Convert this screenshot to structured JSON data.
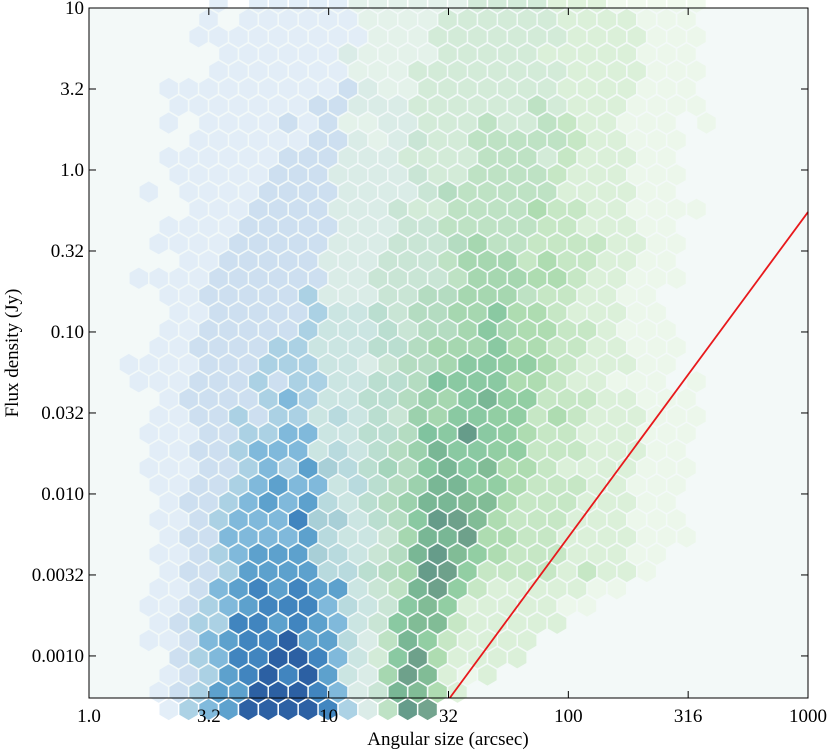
{
  "chart_data": {
    "type": "hexbin",
    "xlabel": "Angular size (arcsec)",
    "ylabel": "Flux density (Jy)",
    "x_scale": "log",
    "y_scale": "log",
    "xlim": [
      1.0,
      1000
    ],
    "ylim": [
      0.00055,
      10
    ],
    "x_ticks": [
      1.0,
      3.162,
      10,
      31.62,
      100,
      316.2,
      1000
    ],
    "x_tick_labels": [
      "1.0",
      "3.2",
      "10",
      "32",
      "100",
      "316",
      "1000"
    ],
    "y_ticks": [
      0.001,
      0.003162,
      0.01,
      0.03162,
      0.1,
      0.3162,
      1.0,
      3.162,
      10
    ],
    "y_tick_labels": [
      "0.0010",
      "0.0032",
      "0.010",
      "0.032",
      "0.10",
      "0.32",
      "1.0",
      "3.2",
      "10"
    ],
    "grid": false,
    "series": [
      {
        "colormap": "Blues",
        "color": "#4a7aa8",
        "density_model": {
          "peak_log10_size": 0.78,
          "peak_log10_flux": -3.05,
          "spread_size": 0.3,
          "flux_slope": 0.55
        }
      },
      {
        "colormap": "Greens",
        "color": "#2e8a5a",
        "density_model": {
          "peak_log10_size": 1.35,
          "peak_log10_flux": -3.05,
          "spread_size": 0.1,
          "flux_slope": 0.9
        }
      }
    ],
    "reference_line": {
      "color": "#e8191c",
      "points": [
        [
          32,
          0.00055
        ],
        [
          1000,
          0.55
        ]
      ]
    },
    "background": "#f3f9f8"
  }
}
